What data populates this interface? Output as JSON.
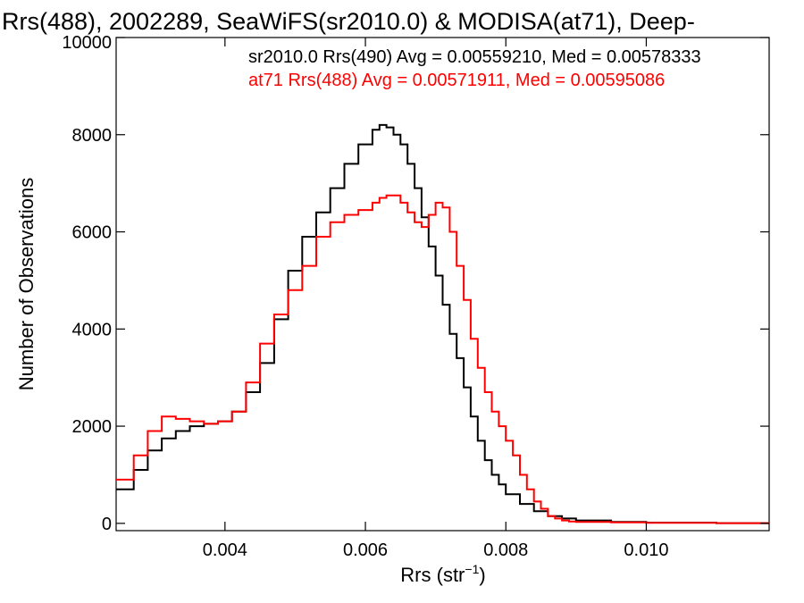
{
  "chart_data": {
    "type": "line",
    "title": "Rrs(488), 2002289, SeaWiFS(sr2010.0) & MODISA(at71), Deep-",
    "xlabel": "Rrs (str",
    "xlabel_sup": "−1",
    "xlabel_end": ")",
    "ylabel": "Number of Observations",
    "xlim": [
      0.00245,
      0.01175
    ],
    "ylim": [
      -150,
      10000
    ],
    "xticks": [
      {
        "value": 0.004,
        "label": "0.004"
      },
      {
        "value": 0.006,
        "label": "0.006"
      },
      {
        "value": 0.008,
        "label": "0.008"
      },
      {
        "value": 0.01,
        "label": "0.010"
      }
    ],
    "yticks": [
      {
        "value": 0,
        "label": "0"
      },
      {
        "value": 2000,
        "label": "2000"
      },
      {
        "value": 4000,
        "label": "4000"
      },
      {
        "value": 6000,
        "label": "6000"
      },
      {
        "value": 8000,
        "label": "8000"
      },
      {
        "value": 10000,
        "label": "10000"
      }
    ],
    "grid": false,
    "legend_position": "top-right",
    "legend_entries": [
      {
        "text": "sr2010.0 Rrs(490) Avg = 0.00559210, Med = 0.00578333",
        "color": "#000000"
      },
      {
        "text": "at71 Rrs(488) Avg = 0.00571911, Med = 0.00595086",
        "color": "#ff0000"
      }
    ],
    "series": [
      {
        "color": "#000000",
        "x": [
          0.00245,
          0.0027,
          0.0029,
          0.0031,
          0.0033,
          0.0035,
          0.0037,
          0.0039,
          0.0041,
          0.0043,
          0.0045,
          0.0047,
          0.0049,
          0.0051,
          0.0053,
          0.0055,
          0.0057,
          0.0059,
          0.0061,
          0.0062,
          0.0063,
          0.0064,
          0.0065,
          0.0066,
          0.0067,
          0.0068,
          0.0069,
          0.007,
          0.0071,
          0.0072,
          0.0073,
          0.0074,
          0.0075,
          0.0076,
          0.0077,
          0.0078,
          0.0079,
          0.008,
          0.0082,
          0.0084,
          0.0086,
          0.0088,
          0.009,
          0.0095,
          0.01,
          0.011,
          0.01175
        ],
        "y": [
          700,
          1100,
          1500,
          1750,
          1900,
          2000,
          2050,
          2100,
          2300,
          2700,
          3300,
          4200,
          5200,
          5900,
          6400,
          6900,
          7400,
          7800,
          8100,
          8200,
          8150,
          8000,
          7800,
          7400,
          6900,
          6300,
          5700,
          5100,
          4500,
          3900,
          3400,
          2800,
          2200,
          1700,
          1300,
          1000,
          800,
          600,
          400,
          250,
          150,
          100,
          60,
          30,
          15,
          5,
          0
        ]
      },
      {
        "color": "#ff0000",
        "x": [
          0.00245,
          0.0027,
          0.0029,
          0.0031,
          0.0033,
          0.0035,
          0.0037,
          0.0039,
          0.0041,
          0.0043,
          0.0045,
          0.0047,
          0.0049,
          0.0051,
          0.0053,
          0.0055,
          0.0057,
          0.0059,
          0.0061,
          0.0062,
          0.0063,
          0.0064,
          0.0065,
          0.0066,
          0.0067,
          0.0068,
          0.0069,
          0.007,
          0.0071,
          0.0072,
          0.0073,
          0.0074,
          0.0075,
          0.0076,
          0.0077,
          0.0078,
          0.0079,
          0.008,
          0.0081,
          0.0082,
          0.0083,
          0.0084,
          0.0085,
          0.0086,
          0.0087,
          0.0088,
          0.0089,
          0.009,
          0.0095,
          0.01,
          0.011,
          0.01175
        ],
        "y": [
          900,
          1400,
          1900,
          2200,
          2150,
          2100,
          2050,
          2100,
          2300,
          2900,
          3700,
          4300,
          4800,
          5300,
          5900,
          6200,
          6350,
          6450,
          6600,
          6700,
          6750,
          6750,
          6600,
          6400,
          6200,
          6100,
          6350,
          6600,
          6500,
          6000,
          5300,
          4600,
          3800,
          3200,
          2700,
          2300,
          2000,
          1700,
          1400,
          1000,
          700,
          450,
          300,
          150,
          100,
          60,
          40,
          30,
          20,
          10,
          5,
          0
        ]
      }
    ]
  }
}
